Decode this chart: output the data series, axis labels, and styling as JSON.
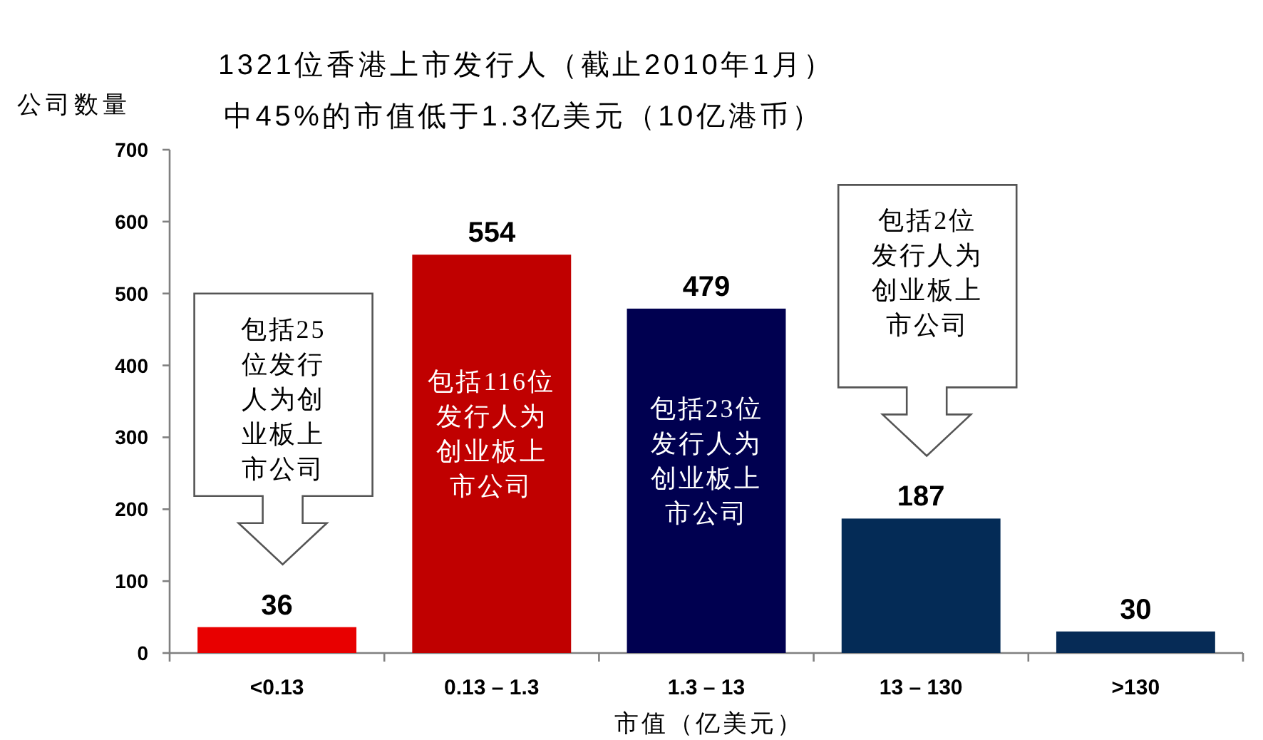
{
  "chart_data": {
    "type": "bar",
    "title": "1321位香港上市发行人（截止2010年1月）",
    "subtitle": "中45%的市值低于1.3亿美元（10亿港币）",
    "ylabel": "公司数量",
    "xlabel": "市值（亿美元）",
    "categories": [
      "<0.13",
      "0.13 – 1.3",
      "1.3 – 13",
      "13 – 130",
      ">130"
    ],
    "values": [
      36,
      554,
      479,
      187,
      30
    ],
    "colors": [
      "#e80000",
      "#c00000",
      "#000050",
      "#042b56",
      "#062b56"
    ],
    "data_labels": true,
    "ylim": [
      0,
      700
    ],
    "yticks": [
      0,
      100,
      200,
      300,
      400,
      500,
      600,
      700
    ],
    "annotations": [
      "包括25位发行人为创业板上市公司",
      "包括116位发行人为创业板上市公司",
      "包括23位发行人为创业板上市公司",
      "包括2位发行人为创业板上市公司"
    ]
  }
}
